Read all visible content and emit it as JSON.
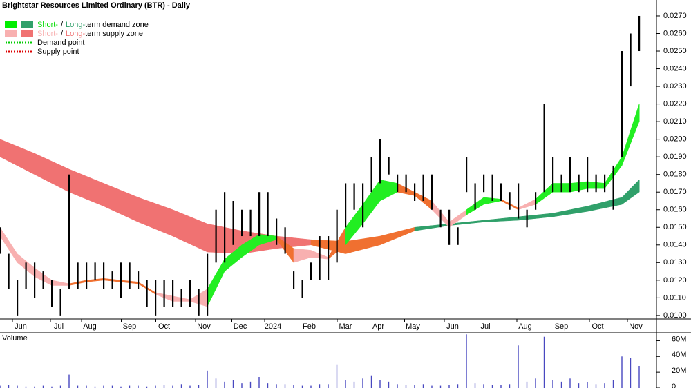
{
  "chart_data": {
    "type": "ohlc",
    "title": "Brightstar Resources Limited Ordinary (BTR) - Daily",
    "xlim": [
      0,
      380
    ],
    "xticks": [
      {
        "value": 12,
        "label": "Jun"
      },
      {
        "value": 34,
        "label": "Jul"
      },
      {
        "value": 52,
        "label": "Aug"
      },
      {
        "value": 75,
        "label": "Sep"
      },
      {
        "value": 95,
        "label": "Oct"
      },
      {
        "value": 118,
        "label": "Nov"
      },
      {
        "value": 139,
        "label": "Dec"
      },
      {
        "value": 158,
        "label": "2024"
      },
      {
        "value": 179,
        "label": "Feb"
      },
      {
        "value": 200,
        "label": "Mar"
      },
      {
        "value": 219,
        "label": "Apr"
      },
      {
        "value": 239,
        "label": "May"
      },
      {
        "value": 262,
        "label": "Jun"
      },
      {
        "value": 281,
        "label": "Jul"
      },
      {
        "value": 304,
        "label": "Aug"
      },
      {
        "value": 325,
        "label": "Sep"
      },
      {
        "value": 346,
        "label": "Oct"
      },
      {
        "value": 368,
        "label": "Nov"
      }
    ],
    "ylim": [
      0.0098,
      0.0279
    ],
    "yticks": [
      {
        "value": 0.01,
        "label": "0.0100"
      },
      {
        "value": 0.011,
        "label": "0.0110"
      },
      {
        "value": 0.012,
        "label": "0.0120"
      },
      {
        "value": 0.013,
        "label": "0.0130"
      },
      {
        "value": 0.014,
        "label": "0.0140"
      },
      {
        "value": 0.015,
        "label": "0.0150"
      },
      {
        "value": 0.016,
        "label": "0.0160"
      },
      {
        "value": 0.017,
        "label": "0.0170"
      },
      {
        "value": 0.018,
        "label": "0.0180"
      },
      {
        "value": 0.019,
        "label": "0.0190"
      },
      {
        "value": 0.02,
        "label": "0.0200"
      },
      {
        "value": 0.021,
        "label": "0.0210"
      },
      {
        "value": 0.022,
        "label": "0.0220"
      },
      {
        "value": 0.023,
        "label": "0.0230"
      },
      {
        "value": 0.024,
        "label": "0.0240"
      },
      {
        "value": 0.025,
        "label": "0.0250"
      },
      {
        "value": 0.026,
        "label": "0.0260"
      },
      {
        "value": 0.027,
        "label": "0.0270"
      }
    ],
    "bars": {
      "color": "#000000",
      "x": [
        0,
        5,
        10,
        15,
        20,
        25,
        30,
        35,
        40,
        45,
        50,
        55,
        60,
        65,
        70,
        75,
        80,
        85,
        90,
        95,
        100,
        105,
        110,
        115,
        120,
        125,
        130,
        135,
        140,
        145,
        150,
        155,
        160,
        165,
        170,
        175,
        180,
        185,
        190,
        195,
        200,
        205,
        210,
        215,
        220,
        225,
        230,
        235,
        240,
        245,
        250,
        255,
        260,
        265,
        270,
        275,
        280,
        285,
        290,
        295,
        300,
        305,
        310,
        315,
        320,
        325,
        330,
        335,
        340,
        345,
        350,
        355,
        360,
        365,
        370
      ],
      "high": [
        0.015,
        0.0135,
        0.012,
        0.013,
        0.013,
        0.0125,
        0.012,
        0.0115,
        0.018,
        0.013,
        0.013,
        0.013,
        0.013,
        0.0125,
        0.013,
        0.013,
        0.0125,
        0.012,
        0.012,
        0.012,
        0.012,
        0.0115,
        0.012,
        0.0115,
        0.0135,
        0.016,
        0.017,
        0.0165,
        0.016,
        0.016,
        0.017,
        0.017,
        0.0155,
        0.015,
        0.0125,
        0.012,
        0.013,
        0.0145,
        0.0145,
        0.016,
        0.0175,
        0.0175,
        0.0175,
        0.019,
        0.02,
        0.019,
        0.018,
        0.018,
        0.0175,
        0.018,
        0.018,
        0.016,
        0.016,
        0.015,
        0.019,
        0.0175,
        0.018,
        0.018,
        0.0175,
        0.017,
        0.0175,
        0.016,
        0.017,
        0.022,
        0.019,
        0.018,
        0.019,
        0.018,
        0.019,
        0.018,
        0.018,
        0.0185,
        0.025,
        0.026,
        0.027
      ],
      "low": [
        0.0135,
        0.0115,
        0.01,
        0.0115,
        0.011,
        0.0115,
        0.0105,
        0.01,
        0.0115,
        0.0115,
        0.0115,
        0.012,
        0.0115,
        0.0115,
        0.011,
        0.0115,
        0.0115,
        0.0105,
        0.01,
        0.0105,
        0.0105,
        0.0105,
        0.0105,
        0.01,
        0.01,
        0.013,
        0.013,
        0.014,
        0.0145,
        0.0145,
        0.0145,
        0.0145,
        0.014,
        0.0135,
        0.0115,
        0.011,
        0.012,
        0.012,
        0.012,
        0.013,
        0.015,
        0.016,
        0.015,
        0.017,
        0.0175,
        0.018,
        0.017,
        0.017,
        0.0165,
        0.0165,
        0.016,
        0.015,
        0.014,
        0.014,
        0.017,
        0.016,
        0.017,
        0.0165,
        0.0165,
        0.016,
        0.0155,
        0.015,
        0.016,
        0.017,
        0.017,
        0.017,
        0.017,
        0.017,
        0.017,
        0.017,
        0.017,
        0.016,
        0.019,
        0.023,
        0.025
      ]
    },
    "bands": [
      {
        "x": [
          0,
          20,
          40,
          60,
          80,
          100,
          120,
          140,
          160,
          180,
          200,
          220,
          240,
          260,
          280,
          300,
          320,
          340,
          360,
          370
        ],
        "upper": [
          0.02,
          0.0192,
          0.0183,
          0.0175,
          0.0167,
          0.016,
          0.0152,
          0.0148,
          0.0145,
          0.0143,
          0.0142,
          0.0145,
          0.015,
          0.0152,
          0.0154,
          0.0156,
          0.0158,
          0.0162,
          0.0167,
          0.0177
        ],
        "lower": [
          0.019,
          0.018,
          0.017,
          0.0162,
          0.0153,
          0.0145,
          0.0136,
          0.0135,
          0.0138,
          0.014,
          0.0135,
          0.014,
          0.0148,
          0.0151,
          0.0153,
          0.0154,
          0.0156,
          0.0159,
          0.0163,
          0.017
        ],
        "colors": [
          "#f07272",
          "#f07272",
          "#f07272",
          "#f07272",
          "#f07272",
          "#f07272",
          "#f07272",
          "#f07272",
          "#f07272",
          "#f07030",
          "#f07030",
          "#f07030",
          "#30a06a",
          "#30a06a",
          "#30a06a",
          "#30a06a",
          "#30a06a",
          "#30a06a",
          "#30a06a",
          "#30a06a"
        ]
      },
      {
        "x": [
          0,
          10,
          20,
          30,
          40,
          50,
          60,
          70,
          80,
          90,
          100,
          110,
          120,
          130,
          140,
          150,
          160,
          170,
          180,
          190,
          200,
          210,
          220,
          230,
          240,
          250,
          260,
          270,
          280,
          290,
          300,
          310,
          320,
          330,
          340,
          350,
          360,
          370
        ],
        "upper": [
          0.015,
          0.0135,
          0.0127,
          0.012,
          0.0118,
          0.012,
          0.0121,
          0.012,
          0.0119,
          0.0113,
          0.0111,
          0.0109,
          0.0115,
          0.0132,
          0.014,
          0.0146,
          0.0145,
          0.0138,
          0.0137,
          0.0133,
          0.015,
          0.0163,
          0.0177,
          0.0175,
          0.017,
          0.0165,
          0.0153,
          0.016,
          0.0167,
          0.0166,
          0.0161,
          0.0166,
          0.0175,
          0.0175,
          0.0176,
          0.0175,
          0.019,
          0.022
        ],
        "lower": [
          0.0145,
          0.013,
          0.0122,
          0.0117,
          0.0117,
          0.0119,
          0.012,
          0.0119,
          0.0118,
          0.0112,
          0.0108,
          0.0108,
          0.0105,
          0.0125,
          0.0133,
          0.014,
          0.0143,
          0.013,
          0.0133,
          0.0132,
          0.014,
          0.0152,
          0.0165,
          0.017,
          0.0168,
          0.016,
          0.015,
          0.0157,
          0.0163,
          0.0165,
          0.016,
          0.0163,
          0.017,
          0.017,
          0.0172,
          0.0172,
          0.0185,
          0.021
        ],
        "colors": [
          "#f8b0b0",
          "#f8b0b0",
          "#f8b0b0",
          "#f8b0b0",
          "#f07030",
          "#f07030",
          "#f07030",
          "#f07030",
          "#f07030",
          "#f8b0b0",
          "#f8b0b0",
          "#f8b0b0",
          "#22ee22",
          "#22ee22",
          "#22ee22",
          "#22ee22",
          "#f07030",
          "#f8b0b0",
          "#f8b0b0",
          "#f07030",
          "#22ee22",
          "#22ee22",
          "#22ee22",
          "#f07030",
          "#f07030",
          "#f8b0b0",
          "#f8b0b0",
          "#22ee22",
          "#22ee22",
          "#f07030",
          "#f8b0b0",
          "#22ee22",
          "#22ee22",
          "#22ee22",
          "#22ee22",
          "#22ee22",
          "#22ee22",
          "#22ee22"
        ]
      }
    ],
    "legend": [
      {
        "parts": [
          "Short-",
          "/",
          "Long-",
          "term demand zone"
        ],
        "colors": [
          "#00dd00",
          "#000000",
          "#30a06a",
          "#000000"
        ],
        "swatches": [
          "#00ee00",
          "#30a06a"
        ]
      },
      {
        "parts": [
          "Short-",
          "/",
          "Long-",
          "term supply zone"
        ],
        "colors": [
          "#f8b0b0",
          "#000000",
          "#f07272",
          "#000000"
        ],
        "swatches": [
          "#f8b0b0",
          "#f07272"
        ]
      },
      {
        "parts": [
          "Demand point"
        ],
        "colors": [
          "#000000"
        ],
        "line": "#00cc00"
      },
      {
        "parts": [
          "Supply point"
        ],
        "colors": [
          "#000000"
        ],
        "line": "#dd0000"
      }
    ],
    "volume": {
      "label": "Volume",
      "color": "#4848c0",
      "ylim": [
        0,
        70
      ],
      "yticks": [
        {
          "value": 0,
          "label": "0"
        },
        {
          "value": 20,
          "label": "20M"
        },
        {
          "value": 40,
          "label": "40M"
        },
        {
          "value": 60,
          "label": "60M"
        }
      ],
      "values": [
        3,
        4,
        3,
        2,
        2,
        3,
        2,
        3,
        17,
        3,
        3,
        2,
        3,
        3,
        2,
        3,
        3,
        2,
        3,
        4,
        3,
        5,
        3,
        4,
        22,
        12,
        8,
        10,
        6,
        8,
        14,
        6,
        5,
        5,
        4,
        3,
        3,
        5,
        5,
        30,
        10,
        8,
        12,
        16,
        10,
        8,
        5,
        4,
        4,
        5,
        3,
        3,
        4,
        5,
        68,
        6,
        5,
        4,
        4,
        5,
        54,
        8,
        12,
        65,
        10,
        8,
        12,
        6,
        7,
        5,
        6,
        10,
        40,
        38,
        28
      ]
    }
  }
}
